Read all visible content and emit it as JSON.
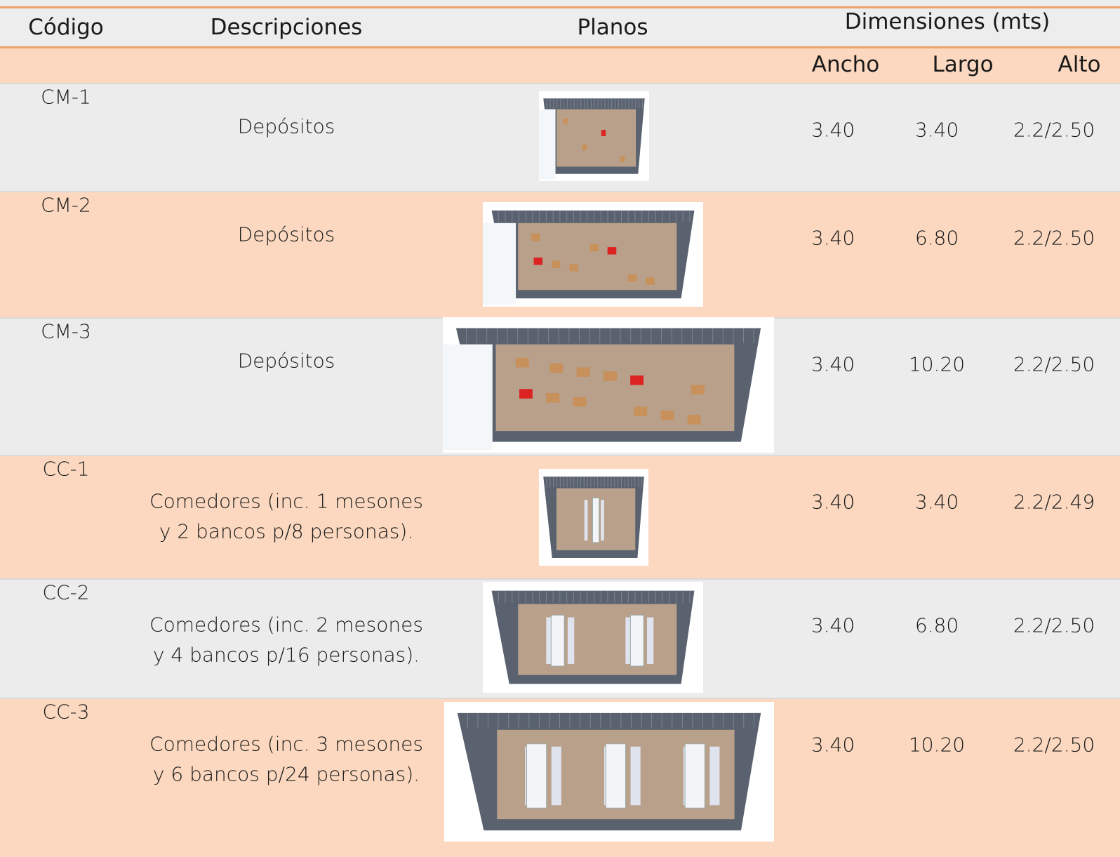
{
  "header": {
    "columns": [
      "Código",
      "Descripciones",
      "Planos",
      "Dimensiones (mts)"
    ],
    "dimensions": [
      "Ancho",
      "Largo",
      "Alto"
    ]
  },
  "table": {
    "rows": [
      {
        "code": "CM-1",
        "description": [
          "Depósitos"
        ],
        "ancho": "3.40",
        "largo": "3.40",
        "alto": "2.2/2.50"
      },
      {
        "code": "CM-2",
        "description": [
          "Depósitos"
        ],
        "ancho": "3.40",
        "largo": "6.80",
        "alto": "2.2/2.50"
      },
      {
        "code": "CM-3",
        "description": [
          "Depósitos"
        ],
        "ancho": "3.40",
        "largo": "10.20",
        "alto": "2.2/2.50"
      },
      {
        "code": "CC-1",
        "description": [
          "Comedores (inc. 1 mesones",
          "y 2 bancos p/8 personas)."
        ],
        "ancho": "3.40",
        "largo": "3.40",
        "alto": "2.2/2.49"
      },
      {
        "code": "CC-2",
        "description": [
          "Comedores (inc. 2 mesones",
          "y 4 bancos p/16 personas)."
        ],
        "ancho": "3.40",
        "largo": "6.80",
        "alto": "2.2/2.50"
      },
      {
        "code": "CC-3",
        "description": [
          "Comedores (inc. 3 mesones",
          "y 6 bancos p/24 personas)."
        ],
        "ancho": "3.40",
        "largo": "10.20",
        "alto": "2.2/2.50"
      }
    ]
  }
}
